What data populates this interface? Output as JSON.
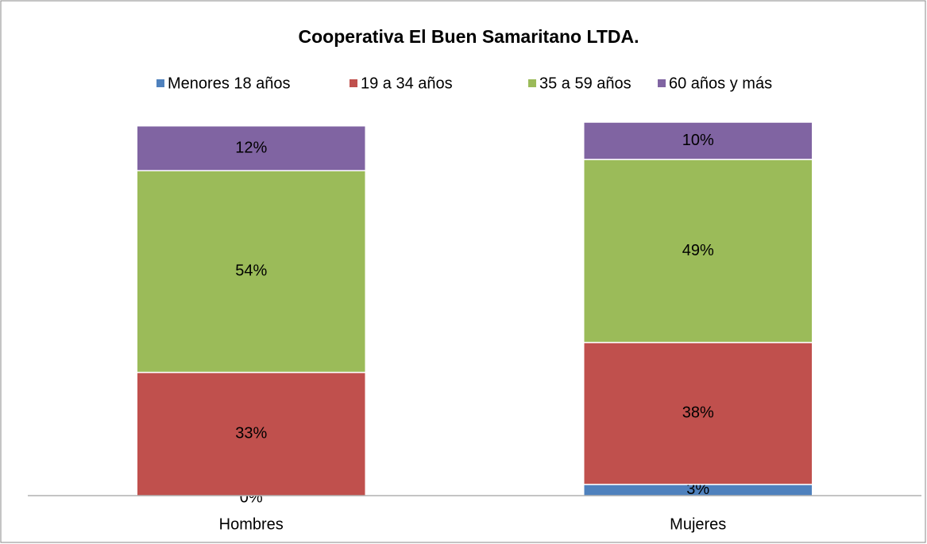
{
  "chart_data": {
    "type": "stacked_bar",
    "title": "Cooperativa El Buen Samaritano LTDA.",
    "categories": [
      "Hombres",
      "Mujeres"
    ],
    "series": [
      {
        "name": "Menores 18 años",
        "color": "#4f81bd",
        "values": [
          0,
          3
        ],
        "value_labels": [
          "0%",
          "3%"
        ]
      },
      {
        "name": "19 a 34 años",
        "color": "#c0504d",
        "values": [
          33,
          38
        ],
        "value_labels": [
          "33%",
          "38%"
        ]
      },
      {
        "name": "35 a 59 años",
        "color": "#9bbb59",
        "values": [
          54,
          49
        ],
        "value_labels": [
          "54%",
          "49%"
        ]
      },
      {
        "name": "60 años y más",
        "color": "#8064a2",
        "values": [
          12,
          10
        ],
        "value_labels": [
          "12%",
          "10%"
        ]
      }
    ],
    "ylim": [
      0,
      100
    ],
    "legend": "top"
  }
}
